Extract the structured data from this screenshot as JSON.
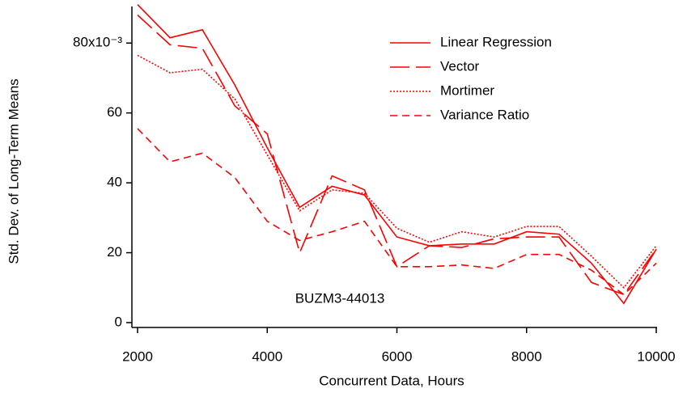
{
  "chart_data": {
    "type": "line",
    "x_label": "Concurrent Data, Hours",
    "y_label": "Std. Dev. of Long-Term Means",
    "annotation": "BUZM3-44013",
    "x": [
      2000,
      2500,
      3000,
      3500,
      4000,
      4500,
      5000,
      5500,
      6000,
      6500,
      7000,
      7500,
      8000,
      8500,
      9000,
      9500,
      10000
    ],
    "series": [
      {
        "name": "Linear Regression",
        "color": "#ff0000",
        "line_style": "solid",
        "values": [
          91,
          81.5,
          83.8,
          68,
          50,
          33,
          39,
          36.5,
          24.5,
          22,
          22.5,
          22.5,
          26,
          25.3,
          17,
          5.5,
          21
        ]
      },
      {
        "name": "Vector",
        "color": "#ff0000",
        "line_style": "longdash",
        "values": [
          88,
          79.5,
          78.5,
          62,
          54,
          20,
          42,
          38,
          16,
          22,
          21.5,
          24,
          24.5,
          24.5,
          11.5,
          8,
          21
        ]
      },
      {
        "name": "Mortimer",
        "color": "#ff0000",
        "line_style": "dotted",
        "values": [
          76.5,
          71.5,
          72.5,
          64,
          48,
          32,
          38,
          37,
          27,
          23,
          26,
          24.5,
          27.5,
          27.5,
          19,
          10,
          22
        ]
      },
      {
        "name": "Variance Ratio",
        "color": "#ff0000",
        "line_style": "dashed",
        "values": [
          55.5,
          46,
          48.5,
          41.5,
          29,
          23.5,
          26,
          29,
          16,
          16,
          16.5,
          15.5,
          19.5,
          19.5,
          15,
          8,
          17
        ]
      }
    ],
    "xlim": [
      2000,
      10000
    ],
    "xticks": [
      2000,
      4000,
      6000,
      8000,
      10000
    ],
    "ylim": [
      0,
      90
    ],
    "yticks": [
      0,
      20,
      40,
      60,
      {
        "value": 80,
        "label": "80x10⁻³"
      }
    ],
    "legend": "top-right"
  }
}
